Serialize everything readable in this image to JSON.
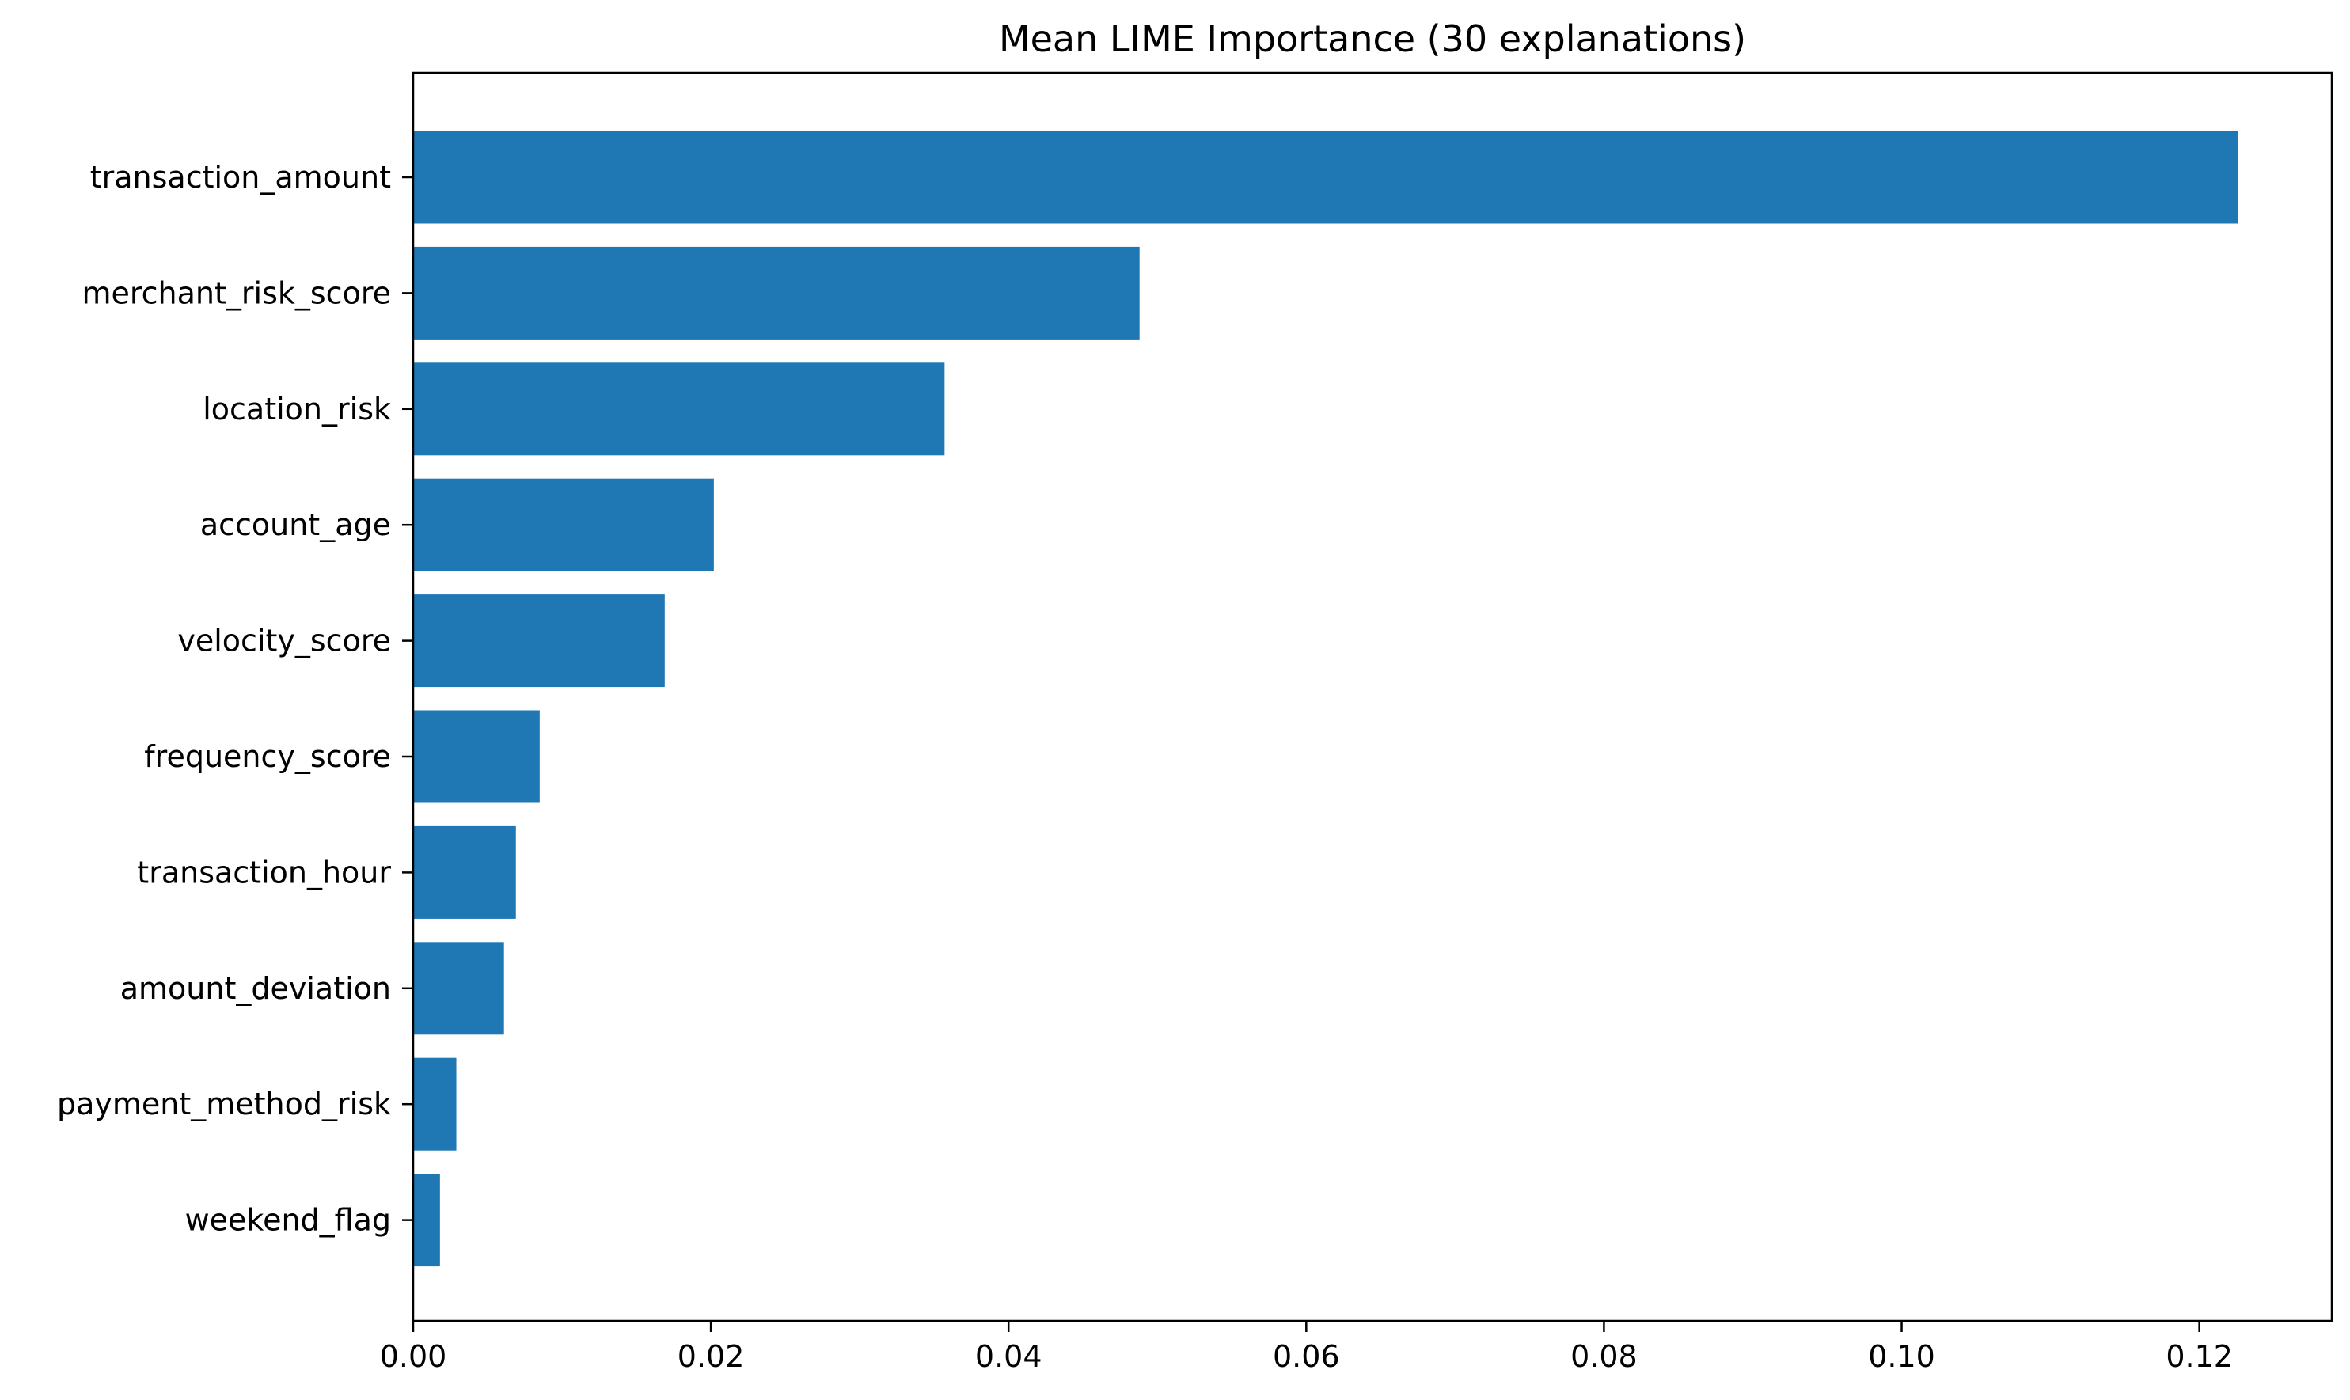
{
  "chart_data": {
    "type": "bar",
    "orientation": "horizontal",
    "title": "Mean LIME Importance (30 explanations)",
    "xlabel": "",
    "ylabel": "",
    "categories": [
      "transaction_amount",
      "merchant_risk_score",
      "location_risk",
      "account_age",
      "velocity_score",
      "frequency_score",
      "transaction_hour",
      "amount_deviation",
      "payment_method_risk",
      "weekend_flag"
    ],
    "values": [
      0.1226,
      0.0488,
      0.0357,
      0.0202,
      0.0169,
      0.0085,
      0.0069,
      0.0061,
      0.0029,
      0.0018
    ],
    "xlim": [
      0.0,
      0.1289
    ],
    "xticks": [
      0.0,
      0.02,
      0.04,
      0.06,
      0.08,
      0.1,
      0.12
    ],
    "xtick_labels": [
      "0.00",
      "0.02",
      "0.04",
      "0.06",
      "0.08",
      "0.10",
      "0.12"
    ],
    "grid": false,
    "bar_color": "#1f77b4"
  }
}
